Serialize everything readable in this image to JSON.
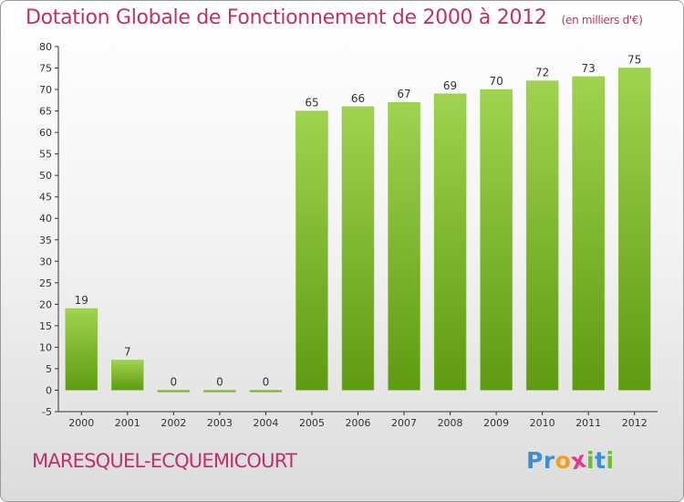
{
  "header": {
    "title": "Dotation Globale de Fonctionnement de 2000 à 2012",
    "subtitle": "(en milliers d'€)"
  },
  "footer": {
    "commune": "MARESQUEL-ECQUEMICOURT",
    "brand": "Proxiti",
    "brand_letters": [
      {
        "char": "P",
        "color": "#3a8fd8"
      },
      {
        "char": "r",
        "color": "#3a8fd8"
      },
      {
        "char": "o",
        "color": "#f0a020"
      },
      {
        "char": "x",
        "color": "#e03a8a"
      },
      {
        "char": "i",
        "color": "#6bbf2c"
      },
      {
        "char": "t",
        "color": "#3a8fd8"
      },
      {
        "char": "i",
        "color": "#6bbf2c"
      }
    ]
  },
  "chart_data": {
    "type": "bar",
    "categories": [
      "2000",
      "2001",
      "2002",
      "2003",
      "2004",
      "2005",
      "2006",
      "2007",
      "2008",
      "2009",
      "2010",
      "2011",
      "2012"
    ],
    "values": [
      19,
      7,
      0,
      0,
      0,
      65,
      66,
      67,
      69,
      70,
      72,
      73,
      75
    ],
    "ylim": [
      -5,
      80
    ],
    "yticks": [
      -5,
      0,
      5,
      10,
      15,
      20,
      25,
      30,
      35,
      40,
      45,
      50,
      55,
      60,
      65,
      70,
      75,
      80
    ],
    "grid": false,
    "colors": {
      "bar_top": "#9fd350",
      "bar_bottom": "#5f9a12",
      "axis": "#333333",
      "title": "#c0306a"
    }
  }
}
